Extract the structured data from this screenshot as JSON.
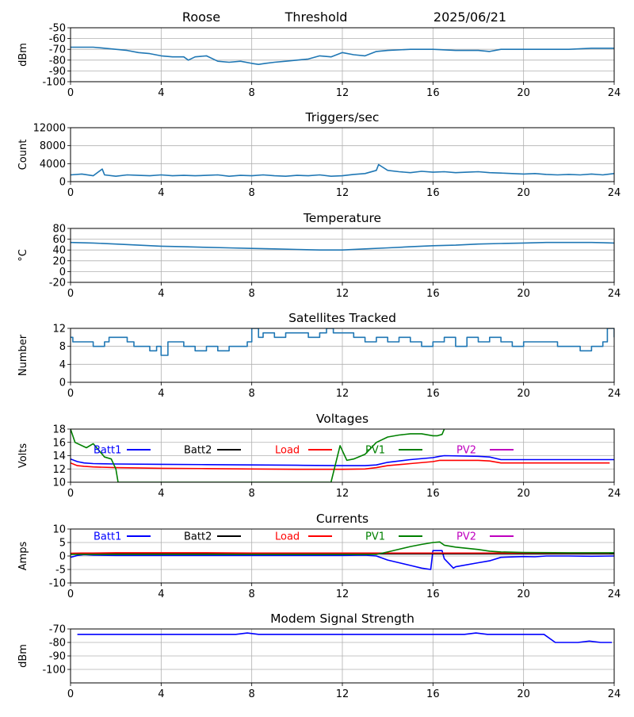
{
  "header": {
    "station": "Roose",
    "mode": "Threshold",
    "date": "2025/06/21"
  },
  "colors": {
    "series_default": "#1f77b4",
    "grid": "#b0b0b0",
    "batt1": "#0000ff",
    "batt2": "#000000",
    "load": "#ff0000",
    "pv1": "#008000",
    "pv2": "#bf00bf"
  },
  "chart_data": [
    {
      "id": "noise",
      "type": "line",
      "title": "",
      "xlabel": "",
      "ylabel": "dBm",
      "xlim": [
        0,
        24
      ],
      "ylim": [
        -100,
        -50
      ],
      "xticks": [
        "0",
        "4",
        "8",
        "12",
        "16",
        "20",
        "24"
      ],
      "yticks": [
        "-50",
        "-60",
        "-70",
        "-80",
        "-90",
        "-100"
      ],
      "grid": true,
      "series": [
        {
          "color_key": "series_default",
          "x": [
            0,
            0.5,
            1,
            1.5,
            2,
            2.5,
            3,
            3.5,
            4,
            4.5,
            5,
            5.2,
            5.5,
            6,
            6.5,
            7,
            7.5,
            8,
            8.3,
            8.6,
            9,
            9.5,
            10,
            10.5,
            11,
            11.5,
            12,
            12.5,
            13,
            13.5,
            14,
            15,
            16,
            17,
            18,
            18.5,
            19,
            20,
            21,
            22,
            23,
            24
          ],
          "y": [
            -68,
            -68,
            -68,
            -69,
            -70,
            -71,
            -73,
            -74,
            -76,
            -77,
            -77,
            -80,
            -77,
            -76,
            -81,
            -82,
            -81,
            -83,
            -84,
            -83,
            -82,
            -81,
            -80,
            -79,
            -76,
            -77,
            -73,
            -75,
            -76,
            -72,
            -71,
            -70,
            -70,
            -71,
            -71,
            -72,
            -70,
            -70,
            -70,
            -70,
            -69,
            -69
          ]
        }
      ]
    },
    {
      "id": "triggers",
      "type": "line",
      "title": "Triggers/sec",
      "xlabel": "",
      "ylabel": "Count",
      "xlim": [
        0,
        24
      ],
      "ylim": [
        0,
        12000
      ],
      "xticks": [
        "0",
        "4",
        "8",
        "12",
        "16",
        "20",
        "24"
      ],
      "yticks": [
        "12000",
        "8000",
        "4000",
        "0"
      ],
      "grid": true,
      "series": [
        {
          "color_key": "series_default",
          "x": [
            0,
            0.5,
            1,
            1.4,
            1.5,
            2,
            2.5,
            3,
            3.5,
            4,
            4.5,
            5,
            5.5,
            6,
            6.5,
            7,
            7.5,
            8,
            8.5,
            9,
            9.5,
            10,
            10.5,
            11,
            11.5,
            12,
            12.5,
            13,
            13.5,
            13.6,
            14,
            14.5,
            15,
            15.5,
            16,
            16.5,
            17,
            17.5,
            18,
            18.5,
            19,
            19.5,
            20,
            20.5,
            21,
            21.5,
            22,
            22.5,
            23,
            23.5,
            24
          ],
          "y": [
            1500,
            1700,
            1300,
            2800,
            1500,
            1200,
            1500,
            1400,
            1300,
            1500,
            1300,
            1400,
            1300,
            1400,
            1500,
            1200,
            1400,
            1300,
            1500,
            1300,
            1200,
            1400,
            1300,
            1500,
            1200,
            1300,
            1600,
            1800,
            2500,
            3800,
            2500,
            2200,
            2000,
            2300,
            2100,
            2200,
            2000,
            2100,
            2200,
            2000,
            1900,
            1800,
            1700,
            1800,
            1600,
            1500,
            1600,
            1500,
            1700,
            1500,
            1800
          ]
        }
      ]
    },
    {
      "id": "temperature",
      "type": "line",
      "title": "Temperature",
      "xlabel": "",
      "ylabel": "°C",
      "xlim": [
        0,
        24
      ],
      "ylim": [
        -20,
        80
      ],
      "xticks": [
        "0",
        "4",
        "8",
        "12",
        "16",
        "20",
        "24"
      ],
      "yticks": [
        "80",
        "60",
        "40",
        "20",
        "0",
        "-20"
      ],
      "grid": true,
      "series": [
        {
          "color_key": "series_default",
          "x": [
            0,
            1,
            2,
            3,
            4,
            5,
            6,
            7,
            8,
            9,
            10,
            11,
            12,
            13,
            14,
            15,
            16,
            17,
            18,
            19,
            20,
            21,
            22,
            23,
            24
          ],
          "y": [
            54,
            53,
            51,
            49,
            47,
            46,
            45,
            44,
            43,
            42,
            41,
            40,
            40,
            42,
            44,
            46,
            48,
            49,
            51,
            52,
            53,
            54,
            54,
            54,
            53
          ]
        }
      ]
    },
    {
      "id": "satellites",
      "type": "line",
      "title": "Satellites Tracked",
      "xlabel": "",
      "ylabel": "Number",
      "xlim": [
        0,
        24
      ],
      "ylim": [
        0,
        12
      ],
      "xticks": [
        "0",
        "4",
        "8",
        "12",
        "16",
        "20",
        "24"
      ],
      "yticks": [
        "12",
        "8",
        "4",
        "0"
      ],
      "grid": true,
      "series": [
        {
          "color_key": "series_default",
          "step": true,
          "x": [
            0,
            0.1,
            0.6,
            1.0,
            1.5,
            1.7,
            2.5,
            2.8,
            3.2,
            3.5,
            3.8,
            4.0,
            4.3,
            5,
            5.5,
            6,
            6.5,
            7,
            7.5,
            7.8,
            8,
            8.3,
            8.5,
            9,
            9.5,
            10,
            10.5,
            11,
            11.3,
            11.6,
            12,
            12.5,
            13,
            13.5,
            14,
            14.5,
            15,
            15.5,
            16,
            16.5,
            17,
            17.5,
            18,
            18.5,
            19,
            19.5,
            20,
            20.5,
            21,
            21.5,
            22,
            22.5,
            23,
            23.5,
            23.7,
            24
          ],
          "y": [
            10,
            9,
            9,
            8,
            9,
            10,
            9,
            8,
            8,
            7,
            8,
            6,
            9,
            8,
            7,
            8,
            7,
            8,
            8,
            9,
            12,
            10,
            11,
            10,
            11,
            11,
            10,
            11,
            12,
            11,
            11,
            10,
            9,
            10,
            9,
            10,
            9,
            8,
            9,
            10,
            8,
            10,
            9,
            10,
            9,
            8,
            9,
            9,
            9,
            8,
            8,
            7,
            8,
            9,
            12,
            10
          ]
        }
      ]
    },
    {
      "id": "voltages",
      "type": "line",
      "title": "Voltages",
      "xlabel": "",
      "ylabel": "Volts",
      "xlim": [
        0,
        24
      ],
      "ylim": [
        10,
        18
      ],
      "xticks": [
        "0",
        "4",
        "8",
        "12",
        "16",
        "20",
        "24"
      ],
      "yticks": [
        "18",
        "16",
        "14",
        "12",
        "10"
      ],
      "grid": true,
      "legend": "top, single row",
      "series": [
        {
          "name": "Batt1",
          "color_key": "batt1",
          "x": [
            0,
            0.3,
            0.6,
            1,
            2,
            4,
            6,
            8,
            10,
            12,
            13,
            13.5,
            14,
            15,
            16,
            16.3,
            16.5,
            18,
            18.5,
            19,
            20,
            22,
            24
          ],
          "y": [
            13.5,
            13.1,
            12.9,
            12.8,
            12.75,
            12.7,
            12.65,
            12.6,
            12.55,
            12.5,
            12.5,
            12.6,
            13.0,
            13.4,
            13.7,
            13.9,
            14.0,
            13.9,
            13.8,
            13.4,
            13.4,
            13.4,
            13.4
          ]
        },
        {
          "name": "Batt2",
          "color_key": "batt2",
          "x": [],
          "y": []
        },
        {
          "name": "Load",
          "color_key": "load",
          "x": [
            0,
            0.3,
            0.6,
            1,
            2,
            4,
            6,
            8,
            10,
            12,
            13,
            13.5,
            14,
            15,
            16,
            16.3,
            16.5,
            18,
            18.5,
            19,
            20,
            22,
            23.8
          ],
          "y": [
            12.9,
            12.5,
            12.4,
            12.3,
            12.2,
            12.1,
            12.05,
            12.0,
            11.95,
            11.95,
            12.0,
            12.2,
            12.5,
            12.8,
            13.1,
            13.3,
            13.3,
            13.3,
            13.2,
            12.9,
            12.9,
            12.9,
            12.9
          ]
        },
        {
          "name": "PV1",
          "color_key": "pv1",
          "x": [
            0,
            0.2,
            0.7,
            1.0,
            1.2,
            1.5,
            1.8,
            2.0,
            2.1,
            11.5,
            11.9,
            12.2,
            12.5,
            13,
            13.5,
            14,
            14.5,
            15,
            15.5,
            16,
            16.2,
            16.4,
            16.5
          ],
          "y": [
            18,
            16,
            15.2,
            15.8,
            15.0,
            13.8,
            13.5,
            12.0,
            10,
            10,
            15.5,
            13.3,
            13.5,
            14.2,
            16.0,
            16.8,
            17.1,
            17.3,
            17.3,
            17.0,
            17.0,
            17.2,
            18
          ]
        },
        {
          "name": "PV2",
          "color_key": "pv2",
          "x": [],
          "y": []
        }
      ]
    },
    {
      "id": "currents",
      "type": "line",
      "title": "Currents",
      "xlabel": "",
      "ylabel": "Amps",
      "xlim": [
        0,
        24
      ],
      "ylim": [
        -10,
        10
      ],
      "xticks": [
        "0",
        "4",
        "8",
        "12",
        "16",
        "20",
        "24"
      ],
      "yticks": [
        "10",
        "5",
        "0",
        "-5",
        "-10"
      ],
      "grid": true,
      "legend": "top, single row",
      "series": [
        {
          "name": "Batt1",
          "color_key": "batt1",
          "x": [
            0,
            0.3,
            0.6,
            1,
            2,
            4,
            6,
            8,
            10,
            12,
            13,
            13.5,
            14,
            14.5,
            15,
            15.5,
            15.9,
            16.0,
            16.4,
            16.5,
            16.9,
            17,
            18,
            18.5,
            19,
            20,
            20.5,
            21,
            22,
            23,
            24
          ],
          "y": [
            -0.5,
            0.2,
            0.5,
            0.3,
            0.2,
            0.2,
            0.2,
            0.2,
            0.2,
            0.2,
            0.3,
            0,
            -1.5,
            -2.5,
            -3.5,
            -4.5,
            -5,
            2,
            2,
            -1,
            -4.5,
            -4,
            -2.5,
            -1.8,
            -0.5,
            -0.2,
            -0.3,
            0,
            0,
            -0.1,
            0
          ]
        },
        {
          "name": "Batt2",
          "color_key": "batt2",
          "x": [
            0,
            2,
            4,
            6,
            8,
            10,
            12,
            14,
            16,
            18,
            20,
            22,
            24
          ],
          "y": [
            0.8,
            0.8,
            0.8,
            0.8,
            0.8,
            0.8,
            0.8,
            0.8,
            0.8,
            0.8,
            0.8,
            0.8,
            0.8
          ]
        },
        {
          "name": "Load",
          "color_key": "load",
          "x": [
            0,
            0.5,
            1,
            2,
            4,
            6,
            8,
            10,
            12,
            13,
            14,
            16,
            18,
            20,
            22,
            23.8
          ],
          "y": [
            1.0,
            1.1,
            1.1,
            1.2,
            1.2,
            1.2,
            1.1,
            1.1,
            1.1,
            1.1,
            1.1,
            1.1,
            1.1,
            1.1,
            1.1,
            1.1
          ]
        },
        {
          "name": "PV1",
          "color_key": "pv1",
          "x": [
            0,
            13.5,
            14,
            14.5,
            15,
            15.5,
            16,
            16.3,
            16.5,
            17,
            18,
            18.5,
            19,
            20,
            22,
            24
          ],
          "y": [
            0.6,
            0.6,
            1.5,
            2.5,
            3.5,
            4.3,
            5,
            5.2,
            4,
            3.3,
            2.4,
            1.8,
            1.5,
            1.3,
            1.2,
            1.2
          ]
        },
        {
          "name": "PV2",
          "color_key": "pv2",
          "x": [],
          "y": []
        }
      ]
    },
    {
      "id": "modem",
      "type": "line",
      "title": "Modem Signal Strength",
      "xlabel": "",
      "ylabel": "dBm",
      "xlim": [
        0,
        24
      ],
      "ylim": [
        -110,
        -70
      ],
      "xticks": [
        "0",
        "4",
        "8",
        "12",
        "16",
        "20",
        "24"
      ],
      "yticks": [
        "-70",
        "-80",
        "-90",
        "-100"
      ],
      "grid": true,
      "series": [
        {
          "color_key": "batt1",
          "x": [
            0.3,
            7.3,
            7.8,
            8.3,
            17.4,
            17.9,
            18.4,
            20.9,
            21.4,
            22.4,
            22.9,
            23.4,
            23.9
          ],
          "y": [
            -74,
            -74,
            -73,
            -74,
            -74,
            -73,
            -74,
            -74,
            -80,
            -80,
            -79,
            -80,
            -80
          ]
        }
      ]
    }
  ]
}
